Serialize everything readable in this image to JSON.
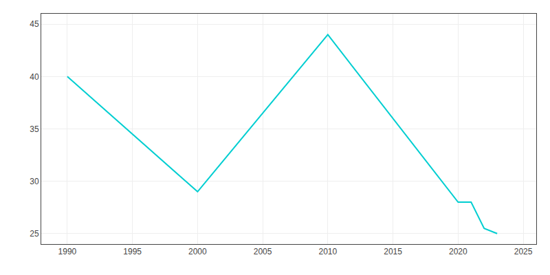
{
  "chart_data": {
    "type": "line",
    "x": [
      1990,
      2000,
      2010,
      2020,
      2021,
      2022,
      2023
    ],
    "values": [
      40,
      29,
      44,
      28,
      28,
      25.5,
      25
    ],
    "color": "#00CED1",
    "xlim": [
      1988,
      2026
    ],
    "xticks": [
      1990,
      1995,
      2000,
      2005,
      2010,
      2015,
      2020,
      2025
    ],
    "ylim": [
      24,
      46
    ],
    "yticks": [
      25,
      30,
      35,
      40,
      45
    ],
    "grid": true
  }
}
